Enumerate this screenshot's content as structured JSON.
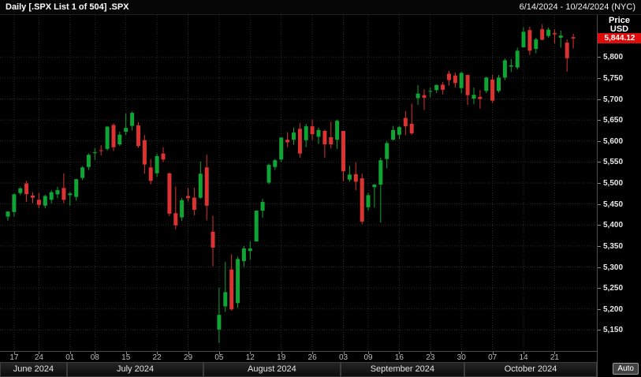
{
  "topbar": {
    "title": "Daily [.SPX List 1 of 504] .SPX",
    "date_range": "6/14/2024 - 10/24/2024 (NYC)"
  },
  "axis_panel": {
    "price_label": "Price",
    "currency_label": "USD",
    "last_price": "5,844.12",
    "auto_label": "Auto"
  },
  "colors": {
    "background": "#000000",
    "up": "#0fa534",
    "down": "#db3232",
    "badge_bg": "#e00b0b",
    "grid": "#2c2c2c"
  },
  "chart_data": {
    "type": "candlestick",
    "symbol": ".SPX",
    "period": "Daily",
    "ylim": [
      5100,
      5900
    ],
    "last_price": 5844.12,
    "y_ticks": [
      {
        "label": "5,800",
        "value": 5800
      },
      {
        "label": "5,750",
        "value": 5750
      },
      {
        "label": "5,700",
        "value": 5700
      },
      {
        "label": "5,650",
        "value": 5650
      },
      {
        "label": "5,600",
        "value": 5600
      },
      {
        "label": "5,550",
        "value": 5550
      },
      {
        "label": "5,500",
        "value": 5500
      },
      {
        "label": "5,450",
        "value": 5450
      },
      {
        "label": "5,400",
        "value": 5400
      },
      {
        "label": "5,350",
        "value": 5350
      },
      {
        "label": "5,300",
        "value": 5300
      },
      {
        "label": "5,250",
        "value": 5250
      },
      {
        "label": "5,200",
        "value": 5200
      },
      {
        "label": "5,150",
        "value": 5150
      }
    ],
    "x_ticks": [
      {
        "label": "17",
        "index": 1
      },
      {
        "label": "24",
        "index": 5
      },
      {
        "label": "01",
        "index": 10
      },
      {
        "label": "08",
        "index": 14
      },
      {
        "label": "15",
        "index": 19
      },
      {
        "label": "22",
        "index": 24
      },
      {
        "label": "29",
        "index": 29
      },
      {
        "label": "05",
        "index": 34
      },
      {
        "label": "12",
        "index": 39
      },
      {
        "label": "19",
        "index": 44
      },
      {
        "label": "26",
        "index": 49
      },
      {
        "label": "03",
        "index": 54
      },
      {
        "label": "09",
        "index": 58
      },
      {
        "label": "16",
        "index": 63
      },
      {
        "label": "23",
        "index": 68
      },
      {
        "label": "30",
        "index": 73
      },
      {
        "label": "07",
        "index": 78
      },
      {
        "label": "14",
        "index": 83
      },
      {
        "label": "21",
        "index": 88
      }
    ],
    "month_sections": [
      {
        "label": "June 2024",
        "start": 0,
        "end": 9
      },
      {
        "label": "July 2024",
        "start": 10,
        "end": 31
      },
      {
        "label": "August 2024",
        "start": 32,
        "end": 53
      },
      {
        "label": "September 2024",
        "start": 54,
        "end": 73
      },
      {
        "label": "October 2024",
        "start": 74,
        "end": 91
      }
    ],
    "candles": [
      [
        "6/14",
        5420,
        5433,
        5410,
        5432
      ],
      [
        "6/17",
        5431,
        5475,
        5420,
        5473
      ],
      [
        "6/18",
        5476,
        5490,
        5471,
        5487
      ],
      [
        "6/20",
        5499,
        5505,
        5455,
        5473
      ],
      [
        "6/21",
        5470,
        5478,
        5452,
        5465
      ],
      [
        "6/24",
        5460,
        5476,
        5440,
        5448
      ],
      [
        "6/25",
        5446,
        5472,
        5440,
        5469
      ],
      [
        "6/26",
        5460,
        5483,
        5451,
        5478
      ],
      [
        "6/27",
        5473,
        5491,
        5464,
        5483
      ],
      [
        "6/28",
        5488,
        5523,
        5452,
        5460
      ],
      [
        "7/01",
        5471,
        5479,
        5446,
        5475
      ],
      [
        "7/02",
        5467,
        5510,
        5458,
        5509
      ],
      [
        "7/03",
        5512,
        5540,
        5507,
        5537
      ],
      [
        "7/05",
        5538,
        5570,
        5531,
        5567
      ],
      [
        "7/08",
        5571,
        5583,
        5555,
        5573
      ],
      [
        "7/09",
        5578,
        5590,
        5566,
        5577
      ],
      [
        "7/10",
        5581,
        5635,
        5577,
        5634
      ],
      [
        "7/11",
        5638,
        5642,
        5576,
        5585
      ],
      [
        "7/12",
        5592,
        5622,
        5588,
        5615
      ],
      [
        "7/15",
        5622,
        5666,
        5614,
        5631
      ],
      [
        "7/16",
        5636,
        5670,
        5625,
        5667
      ],
      [
        "7/17",
        5637,
        5645,
        5584,
        5588
      ],
      [
        "7/18",
        5602,
        5614,
        5522,
        5544
      ],
      [
        "7/19",
        5537,
        5557,
        5497,
        5505
      ],
      [
        "7/22",
        5523,
        5570,
        5514,
        5564
      ],
      [
        "7/23",
        5570,
        5585,
        5550,
        5556
      ],
      [
        "7/24",
        5523,
        5525,
        5421,
        5427
      ],
      [
        "7/25",
        5428,
        5491,
        5390,
        5399
      ],
      [
        "7/26",
        5418,
        5464,
        5410,
        5459
      ],
      [
        "7/29",
        5469,
        5488,
        5456,
        5464
      ],
      [
        "7/30",
        5465,
        5489,
        5423,
        5436
      ],
      [
        "7/31",
        5465,
        5551,
        5462,
        5522
      ],
      [
        "8/01",
        5537,
        5567,
        5411,
        5446
      ],
      [
        "8/02",
        5384,
        5422,
        5302,
        5346
      ],
      [
        "8/05",
        5151,
        5250,
        5119,
        5186
      ],
      [
        "8/06",
        5206,
        5312,
        5193,
        5240
      ],
      [
        "8/07",
        5294,
        5330,
        5196,
        5199
      ],
      [
        "8/08",
        5214,
        5325,
        5203,
        5319
      ],
      [
        "8/09",
        5314,
        5350,
        5300,
        5344
      ],
      [
        "8/12",
        5338,
        5361,
        5317,
        5344
      ],
      [
        "8/13",
        5361,
        5435,
        5360,
        5434
      ],
      [
        "8/14",
        5434,
        5462,
        5417,
        5455
      ],
      [
        "8/15",
        5501,
        5546,
        5497,
        5543
      ],
      [
        "8/16",
        5538,
        5557,
        5531,
        5554
      ],
      [
        "8/19",
        5556,
        5609,
        5550,
        5608
      ],
      [
        "8/20",
        5603,
        5621,
        5585,
        5597
      ],
      [
        "8/21",
        5603,
        5632,
        5591,
        5620
      ],
      [
        "8/22",
        5629,
        5643,
        5560,
        5570
      ],
      [
        "8/23",
        5602,
        5641,
        5585,
        5635
      ],
      [
        "8/26",
        5635,
        5651,
        5602,
        5616
      ],
      [
        "8/27",
        5610,
        5632,
        5593,
        5626
      ],
      [
        "8/28",
        5624,
        5627,
        5560,
        5592
      ],
      [
        "8/29",
        5609,
        5646,
        5582,
        5592
      ],
      [
        "8/30",
        5603,
        5651,
        5581,
        5648
      ],
      [
        "9/03",
        5624,
        5624,
        5504,
        5528
      ],
      [
        "9/04",
        5508,
        5541,
        5503,
        5520
      ],
      [
        "9/05",
        5521,
        5549,
        5483,
        5503
      ],
      [
        "9/06",
        5511,
        5522,
        5402,
        5408
      ],
      [
        "9/09",
        5442,
        5477,
        5434,
        5471
      ],
      [
        "9/10",
        5490,
        5497,
        5441,
        5496
      ],
      [
        "9/11",
        5496,
        5560,
        5406,
        5554
      ],
      [
        "9/12",
        5557,
        5600,
        5535,
        5595
      ],
      [
        "9/13",
        5603,
        5636,
        5601,
        5626
      ],
      [
        "9/16",
        5615,
        5636,
        5604,
        5633
      ],
      [
        "9/17",
        5655,
        5671,
        5614,
        5635
      ],
      [
        "9/18",
        5641,
        5689,
        5615,
        5618
      ],
      [
        "9/19",
        5702,
        5733,
        5686,
        5713
      ],
      [
        "9/20",
        5709,
        5723,
        5674,
        5703
      ],
      [
        "9/23",
        5718,
        5727,
        5704,
        5719
      ],
      [
        "9/24",
        5721,
        5735,
        5714,
        5733
      ],
      [
        "9/25",
        5734,
        5741,
        5711,
        5722
      ],
      [
        "9/26",
        5760,
        5767,
        5732,
        5745
      ],
      [
        "9/27",
        5756,
        5763,
        5727,
        5738
      ],
      [
        "9/30",
        5726,
        5765,
        5714,
        5762
      ],
      [
        "10/01",
        5757,
        5758,
        5686,
        5709
      ],
      [
        "10/02",
        5701,
        5727,
        5688,
        5710
      ],
      [
        "10/03",
        5705,
        5721,
        5677,
        5700
      ],
      [
        "10/04",
        5719,
        5753,
        5714,
        5751
      ],
      [
        "10/07",
        5746,
        5757,
        5691,
        5696
      ],
      [
        "10/08",
        5719,
        5757,
        5715,
        5751
      ],
      [
        "10/09",
        5751,
        5796,
        5745,
        5792
      ],
      [
        "10/10",
        5777,
        5795,
        5764,
        5780
      ],
      [
        "10/11",
        5775,
        5822,
        5770,
        5815
      ],
      [
        "10/14",
        5823,
        5871,
        5823,
        5860
      ],
      [
        "10/15",
        5864,
        5872,
        5805,
        5815
      ],
      [
        "10/16",
        5819,
        5846,
        5809,
        5842
      ],
      [
        "10/17",
        5866,
        5878,
        5840,
        5841
      ],
      [
        "10/18",
        5850,
        5870,
        5846,
        5865
      ],
      [
        "10/21",
        5857,
        5866,
        5832,
        5854
      ],
      [
        "10/22",
        5846,
        5863,
        5822,
        5851
      ],
      [
        "10/23",
        5834,
        5842,
        5765,
        5797
      ],
      [
        "10/24",
        5847,
        5855,
        5820,
        5844.12
      ]
    ]
  }
}
